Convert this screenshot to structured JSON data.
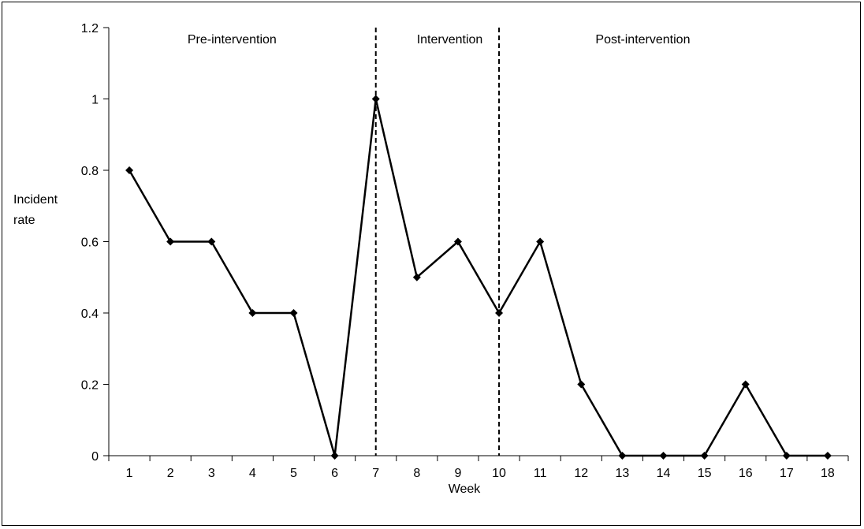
{
  "chart_data": {
    "type": "line",
    "title": "",
    "xlabel": "Week",
    "ylabel": [
      "Incident",
      "rate"
    ],
    "x": [
      1,
      2,
      3,
      4,
      5,
      6,
      7,
      8,
      9,
      10,
      11,
      12,
      13,
      14,
      15,
      16,
      17,
      18
    ],
    "x_tick_labels": [
      "1",
      "2",
      "3",
      "4",
      "5",
      "6",
      "7",
      "8",
      "9",
      "10",
      "11",
      "12",
      "13",
      "14",
      "15",
      "16",
      "17",
      "18"
    ],
    "series": [
      {
        "values": [
          0.8,
          0.6,
          0.6,
          0.4,
          0.4,
          0,
          1,
          0.5,
          0.6,
          0.4,
          0.6,
          0.2,
          0,
          0,
          0,
          0.2,
          0,
          0
        ],
        "color": "#000000",
        "marker": "diamond"
      }
    ],
    "ylim": [
      0,
      1.2
    ],
    "y_ticks": [
      0,
      0.2,
      0.4,
      0.6,
      0.8,
      1,
      1.2
    ],
    "y_tick_labels": [
      "0",
      "0.2",
      "0.4",
      "0.6",
      "0.8",
      "1",
      "1.2"
    ],
    "phase_dividers": [
      7,
      10
    ],
    "phases": [
      {
        "label": "Pre-intervention",
        "center_week": 3.5
      },
      {
        "label": "Intervention",
        "center_week": 8.8
      },
      {
        "label": "Post-intervention",
        "center_week": 13.5
      }
    ],
    "grid": false,
    "legend": "none"
  }
}
